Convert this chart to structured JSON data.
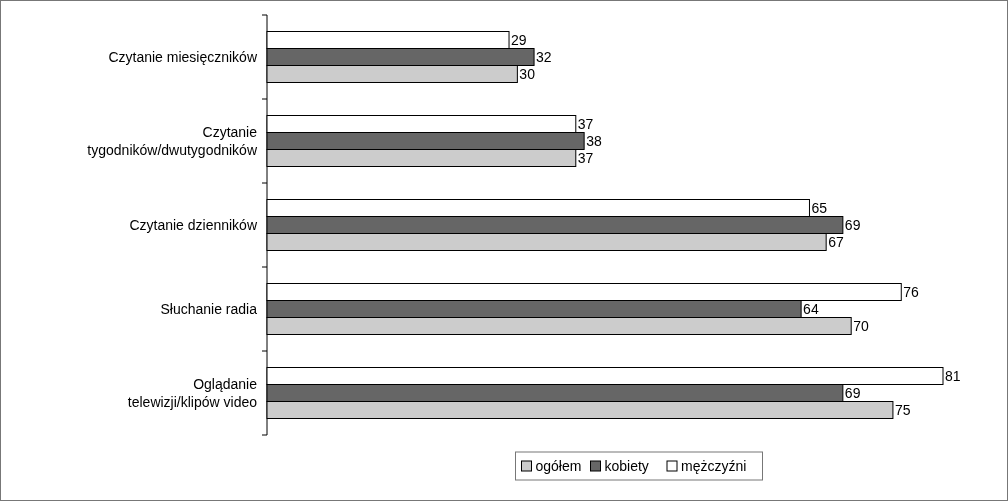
{
  "chart_data": {
    "type": "bar",
    "orientation": "horizontal",
    "categories": [
      "Czytanie miesięczników",
      "Czytanie\ntygodników/dwutygodników",
      "Czytanie dzienników",
      "Słuchanie radia",
      "Oglądanie\ntelewizji/klipów video"
    ],
    "series": [
      {
        "name": "ogółem",
        "color": "#cccccc",
        "values": [
          30,
          37,
          67,
          70,
          75
        ]
      },
      {
        "name": "kobiety",
        "color": "#666666",
        "values": [
          32,
          38,
          69,
          64,
          69
        ]
      },
      {
        "name": "mężczyźni",
        "color": "#ffffff",
        "values": [
          29,
          37,
          65,
          76,
          81
        ]
      }
    ],
    "data_labels": true,
    "legend": "bottom",
    "grid": false
  }
}
